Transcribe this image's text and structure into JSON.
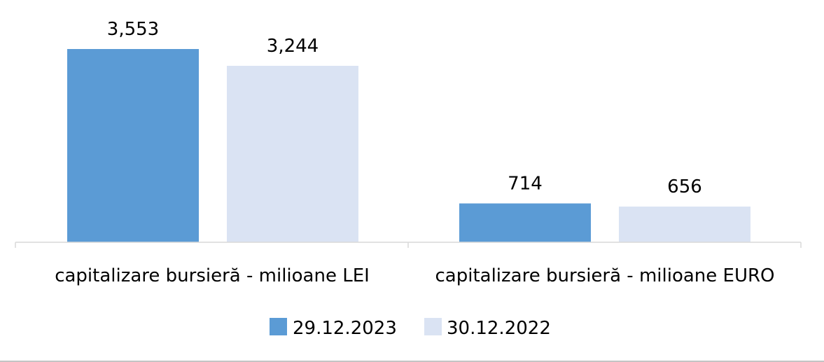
{
  "chart_data": {
    "type": "bar",
    "title": "",
    "xlabel": "",
    "ylabel": "",
    "ylim": [
      0,
      3553
    ],
    "grid": false,
    "legend_position": "bottom",
    "categories": [
      "capitalizare bursieră - milioane LEI",
      "capitalizare bursieră - milioane EURO"
    ],
    "series": [
      {
        "name": "29.12.2023",
        "color": "#5B9BD5",
        "values": [
          3553,
          714
        ],
        "labels": [
          "3,553",
          "714"
        ]
      },
      {
        "name": "30.12.2022",
        "color": "#DAE3F3",
        "values": [
          3244,
          656
        ],
        "labels": [
          "3,244",
          "656"
        ]
      }
    ]
  }
}
